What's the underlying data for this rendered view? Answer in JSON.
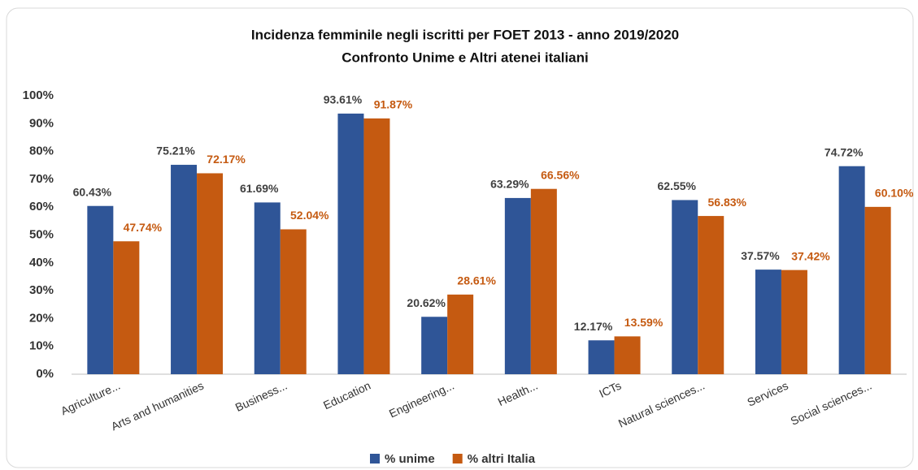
{
  "chart_data": {
    "type": "bar",
    "title": "Incidenza femminile negli iscritti per FOET 2013 - anno 2019/2020",
    "subtitle": "Confronto Unime e Altri atenei italiani",
    "categories": [
      "Agriculture...",
      "Arts and humanities",
      "Business...",
      "Education",
      "Engineering...",
      "Health...",
      "ICTs",
      "Natural sciences...",
      "Services",
      "Social sciences..."
    ],
    "series": [
      {
        "name": "% unime",
        "color": "#2f5597",
        "values": [
          60.43,
          75.21,
          61.69,
          93.61,
          20.62,
          63.29,
          12.17,
          62.55,
          37.57,
          74.72
        ],
        "value_labels": [
          "60.43%",
          "75.21%",
          "61.69%",
          "93.61%",
          "20.62%",
          "63.29%",
          "12.17%",
          "62.55%",
          "37.57%",
          "74.72%"
        ]
      },
      {
        "name": "% altri Italia",
        "color": "#c55a11",
        "values": [
          47.74,
          72.17,
          52.04,
          91.87,
          28.61,
          66.56,
          13.59,
          56.83,
          37.42,
          60.1
        ],
        "value_labels": [
          "47.74%",
          "72.17%",
          "52.04%",
          "91.87%",
          "28.61%",
          "66.56%",
          "13.59%",
          "56.83%",
          "37.42%",
          "60.10%"
        ]
      }
    ],
    "ylim": [
      0,
      100
    ],
    "yticks": [
      {
        "value": 0,
        "label": "0%"
      },
      {
        "value": 10,
        "label": "10%"
      },
      {
        "value": 20,
        "label": "20%"
      },
      {
        "value": 30,
        "label": "30%"
      },
      {
        "value": 40,
        "label": "40%"
      },
      {
        "value": 50,
        "label": "50%"
      },
      {
        "value": 60,
        "label": "60%"
      },
      {
        "value": 70,
        "label": "70%"
      },
      {
        "value": 80,
        "label": "80%"
      },
      {
        "value": 90,
        "label": "90%"
      },
      {
        "value": 100,
        "label": "100%"
      }
    ],
    "grid": false
  }
}
